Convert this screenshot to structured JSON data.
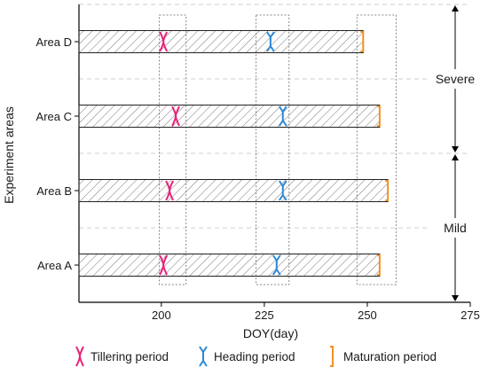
{
  "chart_data": {
    "type": "bar",
    "orientation": "horizontal",
    "title": "",
    "xlabel": "DOY(day)",
    "ylabel": "Experiment areas",
    "xlim": [
      180,
      275
    ],
    "xticks": [
      200,
      225,
      250,
      275
    ],
    "categories": [
      "Area A",
      "Area B",
      "Area C",
      "Area D"
    ],
    "bar_fill": "hatched",
    "bars": [
      {
        "area": "Area A",
        "start": 180,
        "end": 253
      },
      {
        "area": "Area B",
        "start": 180,
        "end": 255
      },
      {
        "area": "Area C",
        "start": 180,
        "end": 253
      },
      {
        "area": "Area D",
        "start": 180,
        "end": 249
      }
    ],
    "series": [
      {
        "name": "Tillering period",
        "marker": "tillering",
        "color": "#e8237a",
        "values": [
          200.5,
          202,
          203.5,
          200.5
        ]
      },
      {
        "name": "Heading period",
        "marker": "heading",
        "color": "#2a88d8",
        "values": [
          228,
          229.5,
          229.5,
          226.5
        ]
      },
      {
        "name": "Maturation period",
        "marker": "maturation",
        "color": "#f29122",
        "values": [
          253,
          255,
          253,
          249
        ]
      }
    ],
    "period_windows": [
      {
        "start": 199.5,
        "end": 206
      },
      {
        "start": 223,
        "end": 231
      }
    ],
    "maturation_window": {
      "start": 247.5,
      "end": 257
    },
    "severity_groups": [
      {
        "label": "Mild",
        "areas": [
          "Area A",
          "Area B"
        ]
      },
      {
        "label": "Severe",
        "areas": [
          "Area C",
          "Area D"
        ]
      }
    ],
    "legend_position": "bottom",
    "grid": "dashed horizontal separators"
  }
}
